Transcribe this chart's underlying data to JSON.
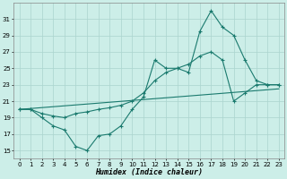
{
  "xlabel": "Humidex (Indice chaleur)",
  "bg_color": "#cceee8",
  "grid_color": "#aad4ce",
  "line_color": "#1a7a6e",
  "xlim": [
    -0.5,
    23.5
  ],
  "ylim": [
    14,
    33
  ],
  "xticks": [
    0,
    1,
    2,
    3,
    4,
    5,
    6,
    7,
    8,
    9,
    10,
    11,
    12,
    13,
    14,
    15,
    16,
    17,
    18,
    19,
    20,
    21,
    22,
    23
  ],
  "yticks": [
    15,
    17,
    19,
    21,
    23,
    25,
    27,
    29,
    31
  ],
  "series1_x": [
    0,
    1,
    2,
    3,
    4,
    5,
    6,
    7,
    8,
    9,
    10,
    11,
    12,
    13,
    14,
    15,
    16,
    17,
    18,
    19,
    20,
    21,
    22,
    23
  ],
  "series1_y": [
    20.0,
    20.0,
    19.0,
    18.0,
    17.5,
    15.5,
    15.0,
    16.8,
    17.0,
    18.0,
    20.0,
    21.5,
    26.0,
    25.0,
    25.0,
    24.5,
    29.5,
    32.0,
    30.0,
    29.0,
    26.0,
    23.5,
    23.0,
    23.0
  ],
  "series2_x": [
    0,
    1,
    2,
    3,
    4,
    5,
    6,
    7,
    8,
    9,
    10,
    11,
    12,
    13,
    14,
    15,
    16,
    17,
    18,
    19,
    20,
    21,
    22,
    23
  ],
  "series2_y": [
    20.0,
    20.0,
    19.5,
    19.2,
    19.0,
    19.5,
    19.7,
    20.0,
    20.2,
    20.5,
    21.0,
    22.0,
    23.5,
    24.5,
    25.0,
    25.5,
    26.5,
    27.0,
    26.0,
    21.0,
    22.0,
    23.0,
    23.0,
    23.0
  ],
  "series3_x": [
    0,
    23
  ],
  "series3_y": [
    20.0,
    22.5
  ]
}
